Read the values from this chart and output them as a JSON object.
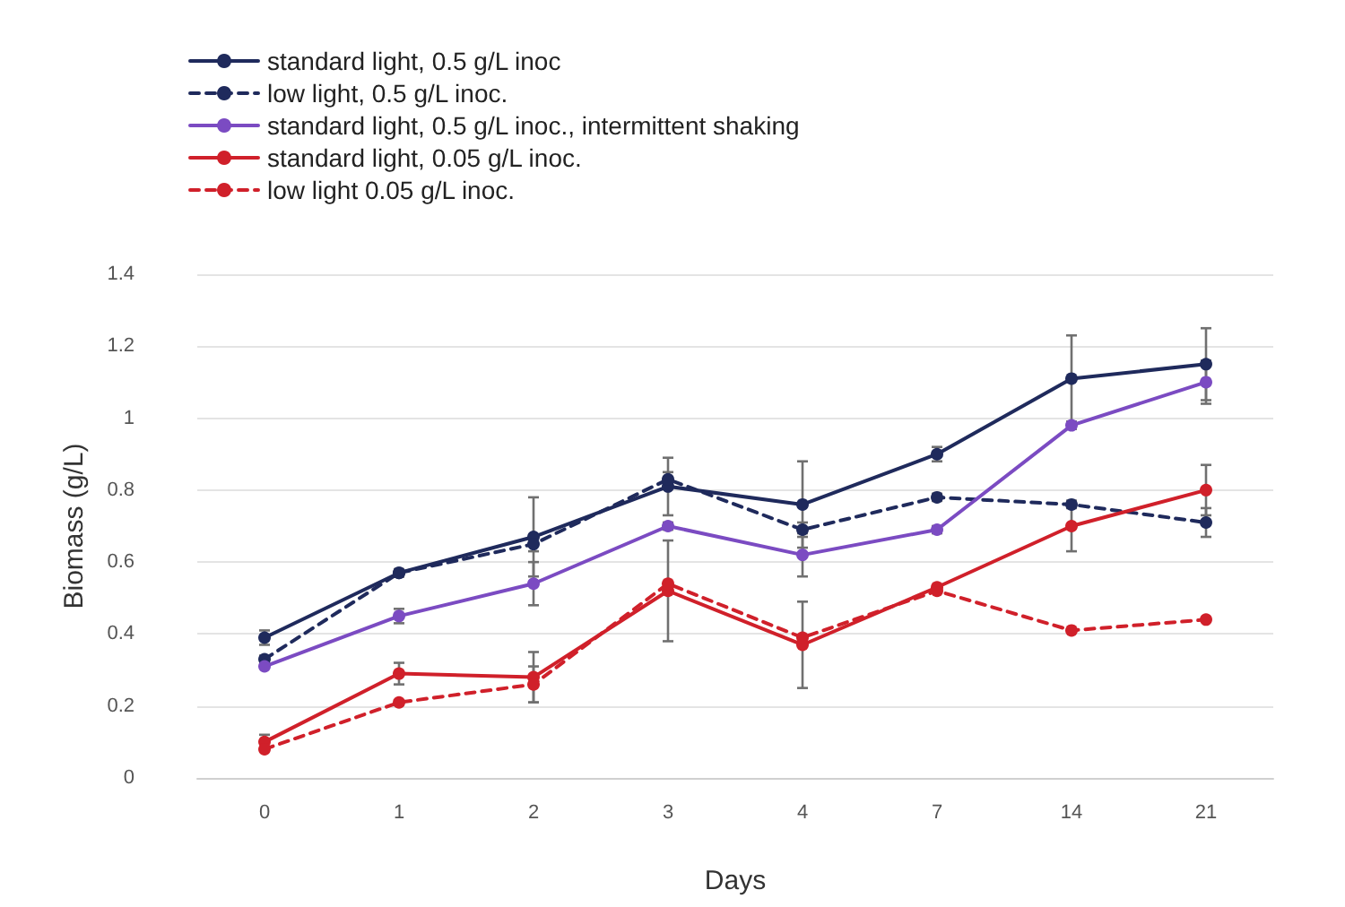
{
  "chart_data": {
    "type": "line",
    "xlabel": "Days",
    "ylabel": "Biomass (g/L)",
    "categories": [
      "0",
      "1",
      "2",
      "3",
      "4",
      "7",
      "14",
      "21"
    ],
    "ylim": [
      0,
      1.4
    ],
    "yticks": [
      {
        "value": 0,
        "label": "0"
      },
      0.2,
      0.4,
      0.6,
      0.8,
      {
        "value": 1,
        "label": "1"
      },
      1.2,
      1.4
    ],
    "grid": "y",
    "legend": "top left",
    "marker": "circle",
    "series": [
      {
        "name": "standard light, 0.5 g/L inoc",
        "color": "#1f2a5c",
        "line_style": "solid",
        "values": [
          0.39,
          0.57,
          0.67,
          0.81,
          0.76,
          0.9,
          1.11,
          1.15
        ],
        "errors": [
          0.02,
          0.01,
          0.11,
          0.08,
          0.12,
          0.02,
          0.12,
          0.1
        ]
      },
      {
        "name": "low light, 0.5 g/L inoc.",
        "color": "#1f2a5c",
        "line_style": "dashed",
        "values": [
          0.33,
          0.57,
          0.65,
          0.83,
          0.69,
          0.78,
          0.76,
          0.71
        ],
        "errors": [
          0.01,
          0.01,
          0.02,
          0.02,
          0.02,
          0.01,
          0.01,
          0.04
        ]
      },
      {
        "name": "standard light, 0.5 g/L inoc., intermittent shaking",
        "color": "#7b4bc2",
        "line_style": "solid",
        "values": [
          0.31,
          0.45,
          0.54,
          0.7,
          0.62,
          0.69,
          0.98,
          1.1
        ],
        "errors": [
          null,
          0.02,
          0.06,
          0.01,
          0.06,
          0.01,
          0.01,
          0.06
        ]
      },
      {
        "name": "standard light, 0.05 g/L inoc.",
        "color": "#d0202a",
        "line_style": "solid",
        "values": [
          0.1,
          0.29,
          0.28,
          0.52,
          0.37,
          0.53,
          0.7,
          0.8
        ],
        "errors": [
          0.02,
          0.03,
          0.07,
          0.14,
          0.12,
          null,
          0.07,
          0.07
        ]
      },
      {
        "name": "low light 0.05 g/L inoc.",
        "color": "#d0202a",
        "line_style": "dashed",
        "values": [
          0.08,
          0.21,
          0.26,
          0.54,
          0.39,
          0.52,
          0.41,
          0.44
        ],
        "errors": [
          null,
          null,
          0.05,
          null,
          null,
          null,
          null,
          null
        ]
      }
    ]
  }
}
